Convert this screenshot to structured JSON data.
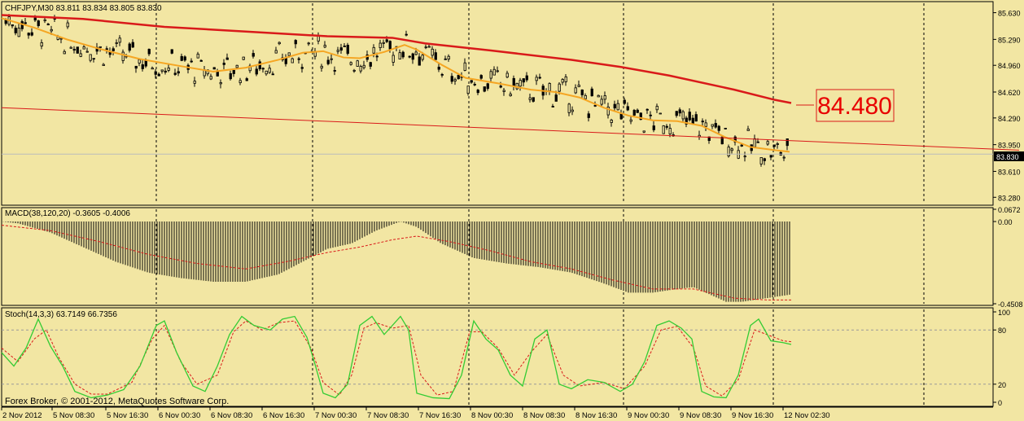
{
  "chart_data": [
    {
      "type": "candlestick",
      "title": "CHFJPY,M30  83.811 83.834 83.805 83.830",
      "ylim": [
        83.2,
        85.75
      ],
      "y_ticks": [
        85.63,
        85.29,
        84.96,
        84.62,
        84.29,
        83.95,
        83.61,
        83.28
      ],
      "y_tick_labels": [
        "85.630",
        "85.290",
        "84.960",
        "84.620",
        "84.290",
        "83.950",
        "83.610",
        "83.280"
      ],
      "current_price": 83.83,
      "current_price_label": "83.830",
      "price_callout": "84.480",
      "ma_fast": [
        [
          0,
          85.56
        ],
        [
          40,
          85.44
        ],
        [
          80,
          85.29
        ],
        [
          120,
          85.17
        ],
        [
          170,
          85.04
        ],
        [
          220,
          84.95
        ],
        [
          260,
          84.88
        ],
        [
          300,
          84.93
        ],
        [
          340,
          85.03
        ],
        [
          370,
          85.12
        ],
        [
          395,
          85.14
        ],
        [
          420,
          85.06
        ],
        [
          440,
          85.05
        ],
        [
          470,
          85.13
        ],
        [
          495,
          85.22
        ],
        [
          510,
          85.16
        ],
        [
          540,
          84.97
        ],
        [
          570,
          84.8
        ],
        [
          610,
          84.73
        ],
        [
          650,
          84.65
        ],
        [
          680,
          84.62
        ],
        [
          710,
          84.55
        ],
        [
          740,
          84.42
        ],
        [
          770,
          84.32
        ],
        [
          800,
          84.26
        ],
        [
          830,
          84.25
        ],
        [
          860,
          84.19
        ],
        [
          890,
          84.04
        ],
        [
          920,
          83.92
        ],
        [
          950,
          83.88
        ],
        [
          968,
          83.86
        ]
      ],
      "ma_slow": [
        [
          0,
          85.6
        ],
        [
          100,
          85.55
        ],
        [
          200,
          85.45
        ],
        [
          300,
          85.39
        ],
        [
          400,
          85.33
        ],
        [
          480,
          85.31
        ],
        [
          520,
          85.24
        ],
        [
          600,
          85.15
        ],
        [
          700,
          85.03
        ],
        [
          760,
          84.94
        ],
        [
          820,
          84.83
        ],
        [
          900,
          84.65
        ],
        [
          950,
          84.52
        ],
        [
          970,
          84.48
        ]
      ],
      "trendline": [
        [
          0,
          84.42
        ],
        [
          1250,
          83.88
        ]
      ],
      "candles": [
        83.811,
        83.834,
        83.805,
        83.83
      ]
    },
    {
      "type": "histogram",
      "title": "MACD(38,120,20) -0.3605 -0.4006",
      "ylim": [
        -0.4508,
        0.0672
      ],
      "y_tick_labels": [
        "0.0672",
        "0.00",
        "-0.4508"
      ],
      "histogram": [
        [
          0,
          0.0
        ],
        [
          20,
          -0.01
        ],
        [
          60,
          -0.06
        ],
        [
          100,
          -0.14
        ],
        [
          140,
          -0.22
        ],
        [
          180,
          -0.28
        ],
        [
          220,
          -0.31
        ],
        [
          260,
          -0.33
        ],
        [
          300,
          -0.33
        ],
        [
          340,
          -0.29
        ],
        [
          370,
          -0.22
        ],
        [
          400,
          -0.15
        ],
        [
          430,
          -0.12
        ],
        [
          460,
          -0.05
        ],
        [
          490,
          0.0
        ],
        [
          510,
          -0.03
        ],
        [
          540,
          -0.12
        ],
        [
          580,
          -0.2
        ],
        [
          620,
          -0.23
        ],
        [
          660,
          -0.25
        ],
        [
          700,
          -0.28
        ],
        [
          740,
          -0.34
        ],
        [
          770,
          -0.39
        ],
        [
          800,
          -0.39
        ],
        [
          830,
          -0.37
        ],
        [
          850,
          -0.36
        ],
        [
          870,
          -0.4
        ],
        [
          890,
          -0.44
        ],
        [
          910,
          -0.44
        ],
        [
          940,
          -0.42
        ],
        [
          970,
          -0.4
        ]
      ],
      "signal": [
        [
          0,
          -0.02
        ],
        [
          60,
          -0.05
        ],
        [
          120,
          -0.11
        ],
        [
          180,
          -0.18
        ],
        [
          240,
          -0.23
        ],
        [
          300,
          -0.26
        ],
        [
          350,
          -0.22
        ],
        [
          400,
          -0.17
        ],
        [
          440,
          -0.14
        ],
        [
          480,
          -0.1
        ],
        [
          510,
          -0.08
        ],
        [
          550,
          -0.11
        ],
        [
          600,
          -0.16
        ],
        [
          650,
          -0.22
        ],
        [
          700,
          -0.26
        ],
        [
          750,
          -0.32
        ],
        [
          800,
          -0.37
        ],
        [
          850,
          -0.37
        ],
        [
          900,
          -0.42
        ],
        [
          940,
          -0.43
        ],
        [
          970,
          -0.43
        ]
      ]
    },
    {
      "type": "line",
      "title": "Stoch(14,3,3) 63.7149 66.7356",
      "ylim": [
        0,
        100
      ],
      "y_ticks": [
        100,
        80,
        20,
        0
      ],
      "y_tick_labels": [
        "100",
        "80",
        "20",
        "0"
      ],
      "main": [
        [
          0,
          55
        ],
        [
          15,
          40
        ],
        [
          30,
          60
        ],
        [
          45,
          92
        ],
        [
          60,
          62
        ],
        [
          75,
          40
        ],
        [
          90,
          12
        ],
        [
          110,
          5
        ],
        [
          130,
          8
        ],
        [
          150,
          14
        ],
        [
          170,
          40
        ],
        [
          190,
          85
        ],
        [
          200,
          90
        ],
        [
          215,
          55
        ],
        [
          235,
          18
        ],
        [
          250,
          12
        ],
        [
          265,
          40
        ],
        [
          280,
          75
        ],
        [
          295,
          95
        ],
        [
          310,
          85
        ],
        [
          330,
          80
        ],
        [
          345,
          92
        ],
        [
          360,
          95
        ],
        [
          375,
          72
        ],
        [
          385,
          42
        ],
        [
          395,
          10
        ],
        [
          410,
          5
        ],
        [
          425,
          20
        ],
        [
          440,
          85
        ],
        [
          455,
          95
        ],
        [
          470,
          75
        ],
        [
          490,
          95
        ],
        [
          500,
          80
        ],
        [
          510,
          10
        ],
        [
          530,
          5
        ],
        [
          550,
          4
        ],
        [
          565,
          30
        ],
        [
          580,
          90
        ],
        [
          595,
          70
        ],
        [
          610,
          58
        ],
        [
          625,
          30
        ],
        [
          640,
          18
        ],
        [
          655,
          70
        ],
        [
          670,
          80
        ],
        [
          685,
          20
        ],
        [
          700,
          15
        ],
        [
          720,
          25
        ],
        [
          740,
          22
        ],
        [
          760,
          12
        ],
        [
          775,
          20
        ],
        [
          790,
          45
        ],
        [
          805,
          85
        ],
        [
          820,
          90
        ],
        [
          835,
          82
        ],
        [
          848,
          70
        ],
        [
          860,
          12
        ],
        [
          875,
          6
        ],
        [
          890,
          5
        ],
        [
          905,
          30
        ],
        [
          920,
          85
        ],
        [
          930,
          92
        ],
        [
          945,
          68
        ],
        [
          960,
          66
        ],
        [
          970,
          64
        ]
      ],
      "signal": [
        [
          0,
          60
        ],
        [
          20,
          45
        ],
        [
          40,
          70
        ],
        [
          55,
          80
        ],
        [
          70,
          50
        ],
        [
          90,
          20
        ],
        [
          110,
          9
        ],
        [
          130,
          9
        ],
        [
          160,
          22
        ],
        [
          185,
          70
        ],
        [
          200,
          85
        ],
        [
          220,
          45
        ],
        [
          240,
          20
        ],
        [
          265,
          30
        ],
        [
          285,
          78
        ],
        [
          300,
          90
        ],
        [
          320,
          80
        ],
        [
          340,
          88
        ],
        [
          360,
          90
        ],
        [
          380,
          60
        ],
        [
          395,
          22
        ],
        [
          415,
          8
        ],
        [
          430,
          30
        ],
        [
          445,
          82
        ],
        [
          460,
          88
        ],
        [
          480,
          82
        ],
        [
          500,
          85
        ],
        [
          515,
          30
        ],
        [
          535,
          8
        ],
        [
          555,
          12
        ],
        [
          575,
          78
        ],
        [
          590,
          78
        ],
        [
          610,
          60
        ],
        [
          630,
          30
        ],
        [
          650,
          55
        ],
        [
          670,
          75
        ],
        [
          690,
          30
        ],
        [
          710,
          18
        ],
        [
          740,
          22
        ],
        [
          765,
          15
        ],
        [
          790,
          40
        ],
        [
          810,
          80
        ],
        [
          830,
          84
        ],
        [
          850,
          60
        ],
        [
          865,
          18
        ],
        [
          885,
          7
        ],
        [
          905,
          25
        ],
        [
          925,
          80
        ],
        [
          940,
          75
        ],
        [
          960,
          68
        ],
        [
          970,
          67
        ]
      ]
    }
  ],
  "x_axis_labels": [
    "2 Nov 2012",
    "5 Nov 08:30",
    "5 Nov 16:30",
    "6 Nov 00:30",
    "6 Nov 08:30",
    "6 Nov 16:30",
    "7 Nov 00:30",
    "7 Nov 08:30",
    "7 Nov 16:30",
    "8 Nov 00:30",
    "8 Nov 08:30",
    "8 Nov 16:30",
    "9 Nov 00:30",
    "9 Nov 08:30",
    "9 Nov 16:30",
    "12 Nov 02:30"
  ],
  "copyright": "Forex Broker, © 2001-2012, MetaQuotes Software Corp.",
  "colors": {
    "background": "#f2e6a3",
    "axis": "#000000",
    "grid": "#000000",
    "bull_candle": "#000000",
    "bear_candle": "#000000",
    "ma_fast": "#f5a623",
    "ma_slow": "#d91a1a",
    "trendline": "#d91a1a",
    "callout": "#e80000",
    "stoch_main": "#33cc33",
    "stoch_signal": "#d91a1a",
    "macd_signal": "#d91a1a"
  }
}
